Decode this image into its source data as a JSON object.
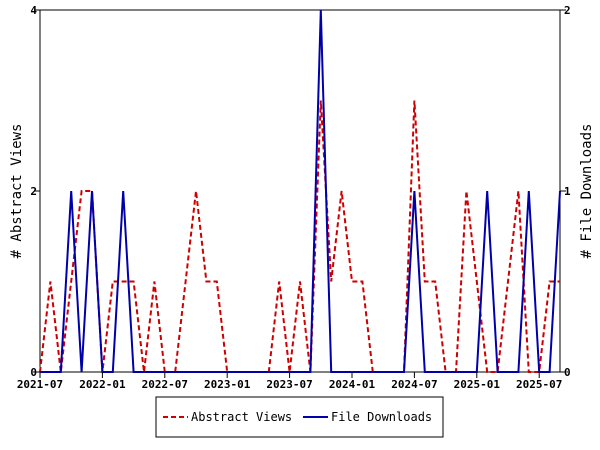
{
  "chart_data": {
    "type": "line",
    "x": [
      "2021-07",
      "2021-08",
      "2021-09",
      "2021-10",
      "2021-11",
      "2021-12",
      "2022-01",
      "2022-02",
      "2022-03",
      "2022-04",
      "2022-05",
      "2022-06",
      "2022-07",
      "2022-08",
      "2022-09",
      "2022-10",
      "2022-11",
      "2022-12",
      "2023-01",
      "2023-02",
      "2023-03",
      "2023-04",
      "2023-05",
      "2023-06",
      "2023-07",
      "2023-08",
      "2023-09",
      "2023-10",
      "2023-11",
      "2023-12",
      "2024-01",
      "2024-02",
      "2024-03",
      "2024-04",
      "2024-05",
      "2024-06",
      "2024-07",
      "2024-08",
      "2024-09",
      "2024-10",
      "2024-11",
      "2024-12",
      "2025-01",
      "2025-02",
      "2025-03",
      "2025-04",
      "2025-05",
      "2025-06",
      "2025-07",
      "2025-08",
      "2025-09"
    ],
    "x_tick_labels": [
      "2021-07",
      "2022-01",
      "2022-07",
      "2023-01",
      "2023-07",
      "2024-01",
      "2024-07",
      "2025-01",
      "2025-07"
    ],
    "series": [
      {
        "name": "Abstract Views",
        "axis": "left",
        "color": "#cc0000",
        "dash": true,
        "values": [
          0,
          1,
          0,
          1,
          2,
          2,
          0,
          1,
          1,
          1,
          0,
          1,
          0,
          0,
          1,
          2,
          1,
          1,
          0,
          0,
          0,
          0,
          0,
          1,
          0,
          1,
          0,
          3,
          1,
          2,
          1,
          1,
          0,
          0,
          0,
          0,
          3,
          1,
          1,
          0,
          0,
          2,
          1,
          0,
          0,
          1,
          2,
          0,
          0,
          1,
          1
        ]
      },
      {
        "name": "File Downloads",
        "axis": "right",
        "color": "#0000aa",
        "dash": false,
        "values": [
          0,
          0,
          0,
          1,
          0,
          1,
          0,
          0,
          1,
          0,
          0,
          0,
          0,
          0,
          0,
          0,
          0,
          0,
          0,
          0,
          0,
          0,
          0,
          0,
          0,
          0,
          0,
          2,
          0,
          0,
          0,
          0,
          0,
          0,
          0,
          0,
          1,
          0,
          0,
          0,
          0,
          0,
          0,
          1,
          0,
          0,
          0,
          1,
          0,
          0,
          1
        ]
      }
    ],
    "ylabel_left": "# Abstract Views",
    "ylabel_right": "# File Downloads",
    "ylim_left": [
      0,
      4
    ],
    "ylim_right": [
      0,
      2
    ],
    "yticks_left": [
      "0",
      "2",
      "4"
    ],
    "yticks_right": [
      "0",
      "1",
      "2"
    ],
    "grid": false,
    "legend_position": "bottom-center"
  }
}
